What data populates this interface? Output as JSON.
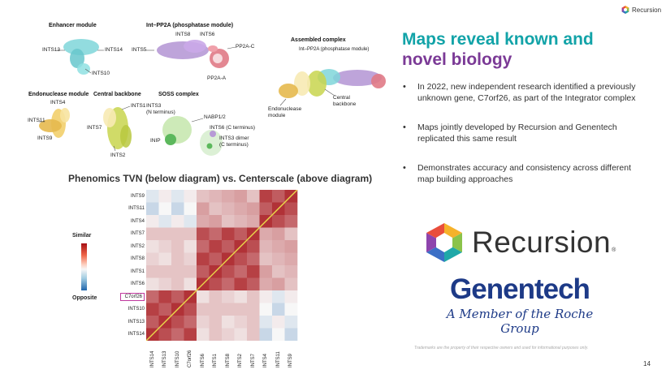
{
  "header": {
    "brand": "Recursion"
  },
  "slide": {
    "title_line1": "Maps reveal known and",
    "title_line2": "novel biology",
    "bullets": [
      "In 2022, new independent research identified a previously unknown gene, C7orf26, as part of the Integrator complex",
      "Maps jointly developed by Recursion and Genentech replicated this same result",
      "Demonstrates accuracy and consistency across different map building approaches"
    ],
    "logos": {
      "recursion": "Recursion",
      "recursion_mark": "®",
      "genentech": "Genentech",
      "genentech_sub": "A Member of the Roche Group"
    },
    "trademark_note": "Trademarks are the property of their respective owners and used for informational purposes only.",
    "page_number": "14"
  },
  "diagram": {
    "modules": {
      "enhancer": "Enhancer module",
      "int_pp2a": "Int–PP2A (phosphatase module)",
      "assembled": "Assembled complex",
      "assembled_sub": "Int–PP2A (phosphatase module)",
      "endonuclease": "Endonuclease module",
      "central_backbone": "Central backbone",
      "soss": "SOSS complex"
    },
    "labels": {
      "ints13": "INTS13",
      "ints14": "INTS14",
      "ints10": "INTS10",
      "ints8": "INTS8",
      "ints6": "INTS6",
      "ints5": "INTS5",
      "pp2a_c": "PP2A-C",
      "pp2a_a": "PP2A-A",
      "ints4": "INTS4",
      "ints11": "INTS11",
      "ints9": "INTS9",
      "ints1": "INTS1",
      "ints7": "INTS7",
      "ints2": "INTS2",
      "ints3_n": "INTS3\n(N terminus)",
      "nabp": "NABP1/2",
      "ints6_c": "INTS6 (C terminus)",
      "inip": "INIP",
      "ints3_dimer": "INTS3 dimer\n(C terminus)",
      "endonuclease_module": "Endonuclease\nmodule",
      "central_backbone_lbl": "Central\nbackbone"
    },
    "colors": {
      "enhancer": "#7fd6d9",
      "phosphatase": "#b79ad6",
      "pp2a": "#e07a86",
      "endonuclease": "#f2cf6b",
      "backbone": "#c8d54e",
      "soss": "#9ad59a",
      "soss_dark": "#5cb85c"
    }
  },
  "heatmap": {
    "title": "Phenomics TVN (below diagram) vs. Centerscale (above diagram)",
    "legend_top": "Similar",
    "legend_bottom": "Opposite",
    "highlight_label": "C7orf26",
    "colors": {
      "high": "#a50f15",
      "low": "#2166ac",
      "neutral": "#f7f7f7",
      "diagonal": "#e8d44a",
      "highlight_box": "#c0399e"
    },
    "rows": [
      "INTS9",
      "INTS11",
      "INTS4",
      "INTS7",
      "INTS2",
      "INTS8",
      "INTS1",
      "INTS6",
      "C7orf26",
      "INTS10",
      "INTS13",
      "INTS14"
    ],
    "cols": [
      "INTS14",
      "INTS13",
      "INTS10",
      "C7orf26",
      "INTS6",
      "INTS1",
      "INTS8",
      "INTS2",
      "INTS7",
      "INTS4",
      "INTS11",
      "INTS9"
    ]
  }
}
